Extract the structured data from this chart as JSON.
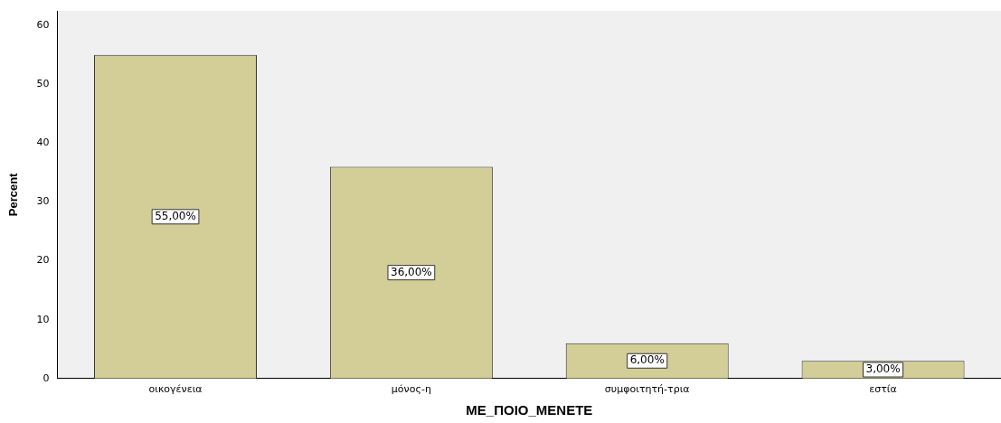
{
  "chart_data": {
    "type": "bar",
    "xlabel": "ΜΕ_ΠΟΙΟ_ΜΕΝΕΤΕ",
    "ylabel": "Percent",
    "categories": [
      "οικογένεια",
      "μόνος-η",
      "συμφοιτητή-τρια",
      "εστία"
    ],
    "values": [
      55,
      36,
      6,
      3
    ],
    "value_labels": [
      "55,00%",
      "36,00%",
      "6,00%",
      "3,00%"
    ],
    "color": "#d3ce97",
    "ylim": [
      0,
      62.5
    ],
    "yticks": [
      0,
      10,
      20,
      30,
      40,
      50,
      60
    ],
    "grid": false,
    "legend": false
  }
}
